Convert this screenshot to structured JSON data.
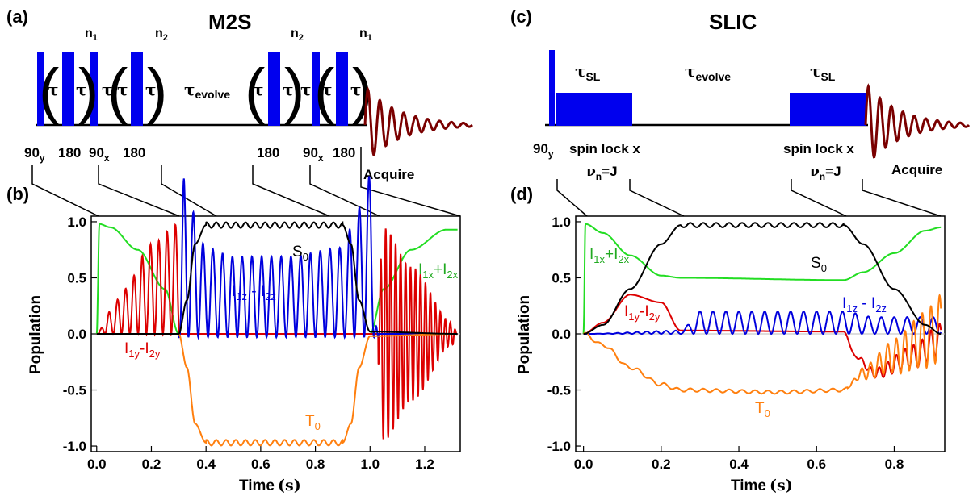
{
  "panels": {
    "a": {
      "letter": "(a)",
      "title": "M2S"
    },
    "b": {
      "letter": "(b)"
    },
    "c": {
      "letter": "(c)",
      "title": "SLIC"
    },
    "d": {
      "letter": "(d)"
    }
  },
  "seq_a": {
    "tau": "τ",
    "tau_evolve": "τ",
    "evolve_sub": "evolve",
    "n": "n",
    "sub1": "1",
    "sub2": "2",
    "p90y": "90",
    "sub_y": "y",
    "p180": "180",
    "p90x": "90",
    "sub_x": "x",
    "acquire": "Acquire"
  },
  "seq_c": {
    "tau": "τ",
    "sub_sl": "SL",
    "tau_evolve": "τ",
    "evolve_sub": "evolve",
    "p90y": "90",
    "sub_y": "y",
    "spinlock1": "spin lock x",
    "spinlock2": "spin lock x",
    "nu": "ν",
    "sub_n": "n",
    "eqJ": "=J",
    "acquire": "Acquire"
  },
  "colors": {
    "pulse": "#0000ee",
    "fid": "#7a0000",
    "S0": "#000000",
    "T0": "#ff7f0e",
    "Iz": "#0000dd",
    "Iy": "#dd0000",
    "Ix": "#22dd22"
  },
  "chart_data": [
    {
      "type": "line",
      "xlabel": "Time",
      "xlabel_unit": "(s)",
      "ylabel": "Population",
      "xlim": [
        -0.02,
        1.33
      ],
      "ylim": [
        -1.05,
        1.05
      ],
      "xticks": [
        "0.0",
        "0.2",
        "0.4",
        "0.6",
        "0.8",
        "1.0",
        "1.2"
      ],
      "yticks": [
        "1.0",
        "0.5",
        "0.0",
        "-0.5",
        "-1.0"
      ],
      "series": [
        {
          "name": "S0",
          "label": "S",
          "sub": "0"
        },
        {
          "name": "T0",
          "label": "T",
          "sub": "0"
        },
        {
          "name": "I1z - I2z",
          "label_parts": [
            "I",
            "1z",
            " - I",
            "2z"
          ]
        },
        {
          "name": "I1y-I2y",
          "label_parts": [
            "I",
            "1y",
            "-I",
            "2y"
          ]
        },
        {
          "name": "I1x+I2x",
          "label_parts": [
            "I",
            "1x",
            "+I",
            "2x"
          ]
        }
      ],
      "points": {
        "S0": [
          [
            0,
            0
          ],
          [
            0.3,
            0
          ],
          [
            0.33,
            0.3
          ],
          [
            0.36,
            0.8
          ],
          [
            0.4,
            0.97
          ],
          [
            0.6,
            0.97
          ],
          [
            0.9,
            0.97
          ],
          [
            0.93,
            0.8
          ],
          [
            0.96,
            0.3
          ],
          [
            1.0,
            0.02
          ],
          [
            1.32,
            0
          ]
        ],
        "T0": [
          [
            0,
            0
          ],
          [
            0.3,
            0
          ],
          [
            0.33,
            -0.3
          ],
          [
            0.36,
            -0.8
          ],
          [
            0.4,
            -0.97
          ],
          [
            0.6,
            -0.97
          ],
          [
            0.9,
            -0.97
          ],
          [
            0.93,
            -0.8
          ],
          [
            0.96,
            -0.3
          ],
          [
            1.0,
            -0.02
          ],
          [
            1.32,
            0
          ]
        ],
        "Ix": [
          [
            0,
            0
          ],
          [
            0.01,
            0.98
          ],
          [
            0.05,
            0.95
          ],
          [
            0.15,
            0.75
          ],
          [
            0.25,
            0.4
          ],
          [
            0.3,
            0.0
          ],
          [
            1.0,
            0.0
          ],
          [
            1.05,
            0.4
          ],
          [
            1.15,
            0.75
          ],
          [
            1.28,
            0.93
          ],
          [
            1.32,
            0.93
          ]
        ],
        "Iz": [
          [
            0,
            0
          ],
          [
            0.3,
            0
          ],
          [
            0.32,
            0.9
          ],
          [
            0.35,
            0.7
          ],
          [
            0.4,
            0.5
          ],
          [
            0.5,
            0.45
          ],
          [
            0.7,
            0.45
          ],
          [
            0.9,
            0.5
          ],
          [
            0.95,
            0.7
          ],
          [
            1.0,
            0.9
          ],
          [
            1.03,
            0
          ]
        ],
        "Iy": [
          [
            0,
            0
          ],
          [
            0.05,
            0.2
          ],
          [
            0.1,
            0.4
          ],
          [
            0.2,
            0.8
          ],
          [
            0.3,
            0.98
          ],
          [
            0.32,
            0
          ],
          [
            1.02,
            0
          ],
          [
            1.05,
            -0.95
          ],
          [
            1.15,
            -0.6
          ],
          [
            1.3,
            -0.1
          ],
          [
            1.32,
            0
          ]
        ]
      }
    },
    {
      "type": "line",
      "xlabel": "Time",
      "xlabel_unit": "(s)",
      "ylabel": "Population",
      "xlim": [
        -0.02,
        0.93
      ],
      "ylim": [
        -1.05,
        1.05
      ],
      "xticks": [
        "0.0",
        "0.2",
        "0.4",
        "0.6",
        "0.8"
      ],
      "yticks": [
        "1.0",
        "0.5",
        "0.0",
        "-0.5",
        "-1.0"
      ],
      "series": [
        {
          "name": "S0",
          "label": "S",
          "sub": "0"
        },
        {
          "name": "T0",
          "label": "T",
          "sub": "0"
        },
        {
          "name": "I1z - I2z",
          "label_parts": [
            "I",
            "1z",
            " - I",
            "2z"
          ]
        },
        {
          "name": "I1y-I2y",
          "label_parts": [
            "I",
            "1y",
            "-I",
            "2y"
          ]
        },
        {
          "name": "I1x+I2x",
          "label_parts": [
            "I",
            "1x",
            "+I",
            "2x"
          ]
        }
      ],
      "points": {
        "S0": [
          [
            0,
            0
          ],
          [
            0.05,
            0.08
          ],
          [
            0.12,
            0.4
          ],
          [
            0.2,
            0.8
          ],
          [
            0.25,
            0.97
          ],
          [
            0.5,
            0.97
          ],
          [
            0.67,
            0.97
          ],
          [
            0.72,
            0.8
          ],
          [
            0.8,
            0.4
          ],
          [
            0.88,
            0.08
          ],
          [
            0.92,
            0
          ]
        ],
        "T0": [
          [
            0,
            0
          ],
          [
            0.05,
            -0.1
          ],
          [
            0.12,
            -0.3
          ],
          [
            0.2,
            -0.45
          ],
          [
            0.25,
            -0.5
          ],
          [
            0.5,
            -0.52
          ],
          [
            0.67,
            -0.5
          ],
          [
            0.72,
            -0.35
          ],
          [
            0.8,
            -0.2
          ],
          [
            0.88,
            -0.05
          ],
          [
            0.92,
            0.05
          ]
        ],
        "Ix": [
          [
            0,
            0
          ],
          [
            0.005,
            0.98
          ],
          [
            0.05,
            0.9
          ],
          [
            0.12,
            0.7
          ],
          [
            0.2,
            0.52
          ],
          [
            0.25,
            0.5
          ],
          [
            0.67,
            0.48
          ],
          [
            0.72,
            0.55
          ],
          [
            0.8,
            0.72
          ],
          [
            0.88,
            0.92
          ],
          [
            0.92,
            0.95
          ]
        ],
        "Iz": [
          [
            0,
            0
          ],
          [
            0.25,
            0.03
          ],
          [
            0.3,
            0.2
          ],
          [
            0.67,
            0.2
          ],
          [
            0.75,
            0.15
          ],
          [
            0.92,
            0.15
          ]
        ],
        "Iy": [
          [
            0,
            0
          ],
          [
            0.05,
            0.1
          ],
          [
            0.12,
            0.35
          ],
          [
            0.2,
            0.28
          ],
          [
            0.25,
            0.03
          ],
          [
            0.67,
            0.02
          ],
          [
            0.7,
            -0.2
          ],
          [
            0.75,
            -0.35
          ],
          [
            0.85,
            -0.2
          ],
          [
            0.92,
            -0.05
          ]
        ]
      }
    }
  ]
}
